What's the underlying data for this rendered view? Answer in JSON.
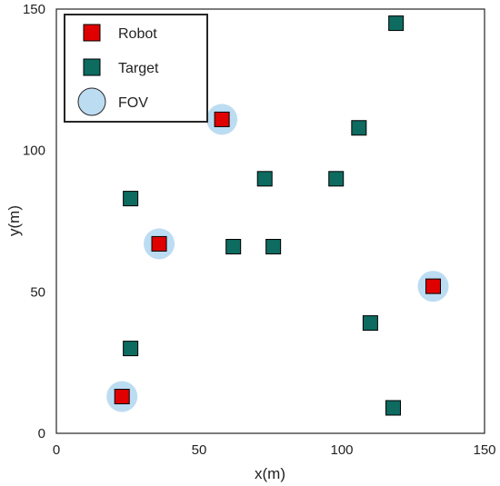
{
  "chart_data": {
    "type": "scatter",
    "title": "",
    "xlabel": "x(m)",
    "ylabel": "y(m)",
    "xlim": [
      0,
      150
    ],
    "ylim": [
      0,
      150
    ],
    "xticks": [
      0,
      50,
      100,
      150
    ],
    "yticks": [
      0,
      50,
      100,
      150
    ],
    "grid": false,
    "legend_position": "top-left",
    "series": [
      {
        "name": "Robot",
        "marker": "square",
        "color": "#e00000",
        "edge_color": "#000000",
        "points": [
          {
            "x": 58,
            "y": 111
          },
          {
            "x": 36,
            "y": 67
          },
          {
            "x": 132,
            "y": 52
          },
          {
            "x": 23,
            "y": 13
          }
        ]
      },
      {
        "name": "Target",
        "marker": "square",
        "color": "#0d6b60",
        "edge_color": "#000000",
        "points": [
          {
            "x": 119,
            "y": 145
          },
          {
            "x": 106,
            "y": 108
          },
          {
            "x": 73,
            "y": 90
          },
          {
            "x": 98,
            "y": 90
          },
          {
            "x": 26,
            "y": 83
          },
          {
            "x": 62,
            "y": 66
          },
          {
            "x": 76,
            "y": 66
          },
          {
            "x": 110,
            "y": 39
          },
          {
            "x": 26,
            "y": 30
          },
          {
            "x": 118,
            "y": 9
          }
        ]
      },
      {
        "name": "FOV",
        "marker": "circle",
        "color": "#bcdcf2",
        "centered_on": "Robot"
      }
    ]
  }
}
